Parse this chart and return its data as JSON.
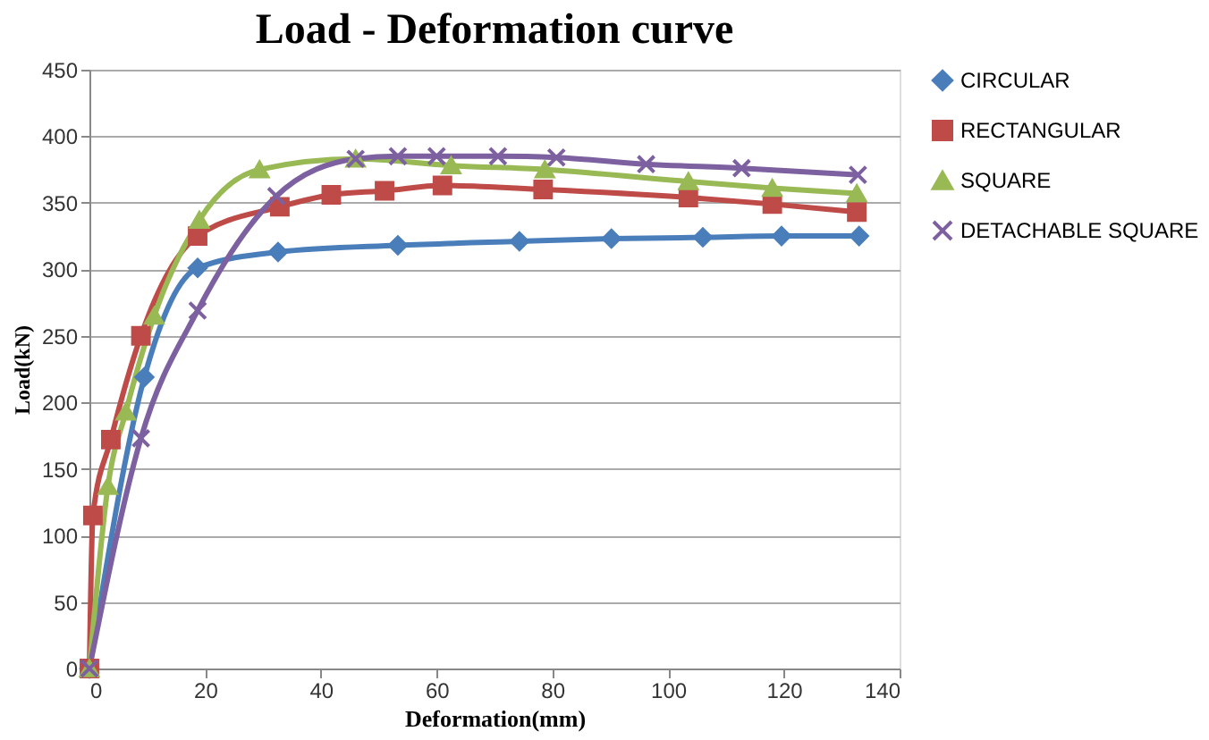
{
  "chart_data": {
    "type": "line",
    "title": "Load - Deformation curve",
    "xlabel": "Deformation(mm)",
    "ylabel": "Load(kN)",
    "xlim": [
      0,
      140
    ],
    "xticks": [
      0,
      20,
      40,
      60,
      80,
      100,
      120,
      140
    ],
    "ylim": [
      0,
      450
    ],
    "yticks": [
      0,
      50,
      100,
      150,
      200,
      250,
      300,
      350,
      400,
      450
    ],
    "grid": "y",
    "legend": "right",
    "line_style": "solid",
    "series": [
      {
        "name": "CIRCULAR",
        "color": "#4a7ebb",
        "marker": "diamond",
        "x": [
          0,
          9.5,
          18.7,
          32.6,
          53.3,
          74.3,
          90.2,
          106,
          119.6,
          133
        ],
        "values": [
          0,
          219,
          301,
          313,
          318,
          321,
          323,
          324,
          325,
          325
        ]
      },
      {
        "name": "RECTANGULAR",
        "color": "#be4b48",
        "marker": "square",
        "x": [
          0,
          0.6,
          3.7,
          8.9,
          18.7,
          32.9,
          41.8,
          51,
          61,
          78.4,
          103.5,
          118,
          132.6
        ],
        "values": [
          0,
          115,
          172,
          250,
          325,
          347,
          356,
          359,
          363,
          360,
          354,
          349,
          343
        ]
      },
      {
        "name": "SQUARE",
        "color": "#98b954",
        "marker": "triangle",
        "x": [
          0,
          3.2,
          6.3,
          11.2,
          19,
          29.4,
          46,
          62.5,
          78.7,
          103.5,
          118,
          132.6
        ],
        "values": [
          0,
          137,
          193,
          265,
          337,
          375,
          383,
          378,
          375,
          366,
          361,
          357
        ]
      },
      {
        "name": "DETACHABLE SQUARE",
        "color": "#7d60a0",
        "marker": "cross",
        "x": [
          0,
          8.9,
          18.7,
          32.3,
          46,
          53.3,
          60,
          70.6,
          80.7,
          96.2,
          112.7,
          132.8
        ],
        "values": [
          0,
          173,
          269,
          355,
          383,
          385,
          385,
          385,
          384,
          379,
          376,
          371
        ]
      }
    ]
  }
}
